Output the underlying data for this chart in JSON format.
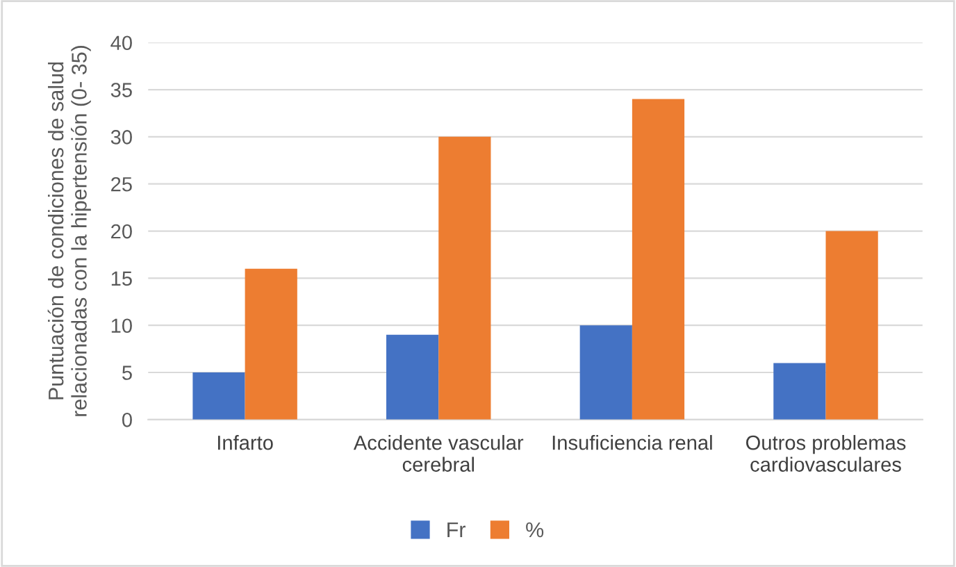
{
  "chart_data": {
    "type": "bar",
    "ylabel": "Puntuación de condiciones de salud\nrelacionadas con la hipertensión (0- 35)",
    "categories": [
      "Infarto",
      "Accidente vascular\ncerebral",
      "Insuficiencia renal",
      "Outros problemas\ncardiovasculares"
    ],
    "series": [
      {
        "name": "Fr",
        "color": "#4472c4",
        "values": [
          5,
          9,
          10,
          6
        ]
      },
      {
        "name": "%",
        "color": "#ed7d31",
        "values": [
          16,
          30,
          34,
          20
        ]
      }
    ],
    "ylim": [
      0,
      40
    ],
    "yticks": [
      0,
      5,
      10,
      15,
      20,
      25,
      30,
      35,
      40
    ],
    "grid": "y",
    "legend": "bottom"
  }
}
